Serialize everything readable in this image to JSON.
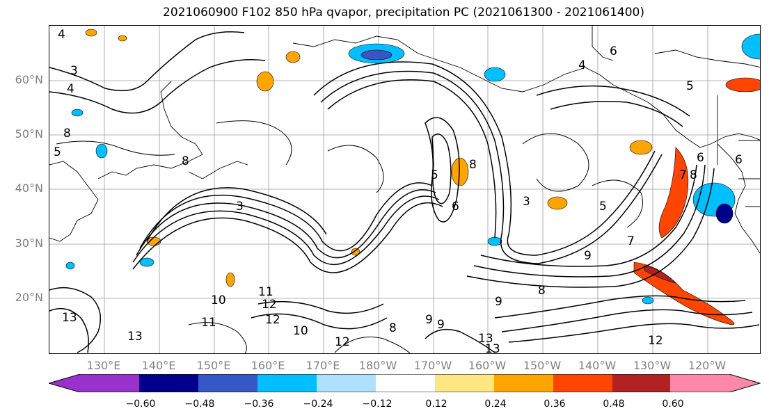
{
  "title": "2021060900 F102 850 hPa qvapor, precipitation PC (2021061300 - 2021061400)",
  "lat_labels": [
    "60°N",
    "50°N",
    "40°N",
    "30°N",
    "20°N"
  ],
  "lon_labels": [
    "130°E",
    "140°E",
    "150°E",
    "160°E",
    "170°E",
    "180°W",
    "170°W",
    "160°W",
    "150°W",
    "140°W",
    "130°W",
    "120°W"
  ],
  "colorbar": {
    "colors": [
      "#9932cc",
      "#00008b",
      "#3657c6",
      "#00bfff",
      "#b0e0ff",
      "#ffffff",
      "#ffe680",
      "#ffa500",
      "#ff4500",
      "#b22222",
      "#ff88aa"
    ],
    "tick_labels": [
      "−0.60",
      "−0.48",
      "−0.36",
      "−0.24",
      "−0.12",
      "0.12",
      "0.24",
      "0.36",
      "0.48",
      "0.60"
    ]
  },
  "contour_labels": [
    "4",
    "3",
    "4",
    "8",
    "5",
    "6",
    "8",
    "3",
    "5",
    "4",
    "6",
    "5",
    "8",
    "3",
    "9",
    "7",
    "9",
    "12",
    "10",
    "11",
    "12",
    "10",
    "12",
    "8",
    "9",
    "13",
    "13",
    "12",
    "11",
    "13",
    "13",
    "8",
    "9",
    "6",
    "7",
    "5",
    "6",
    "8"
  ]
}
